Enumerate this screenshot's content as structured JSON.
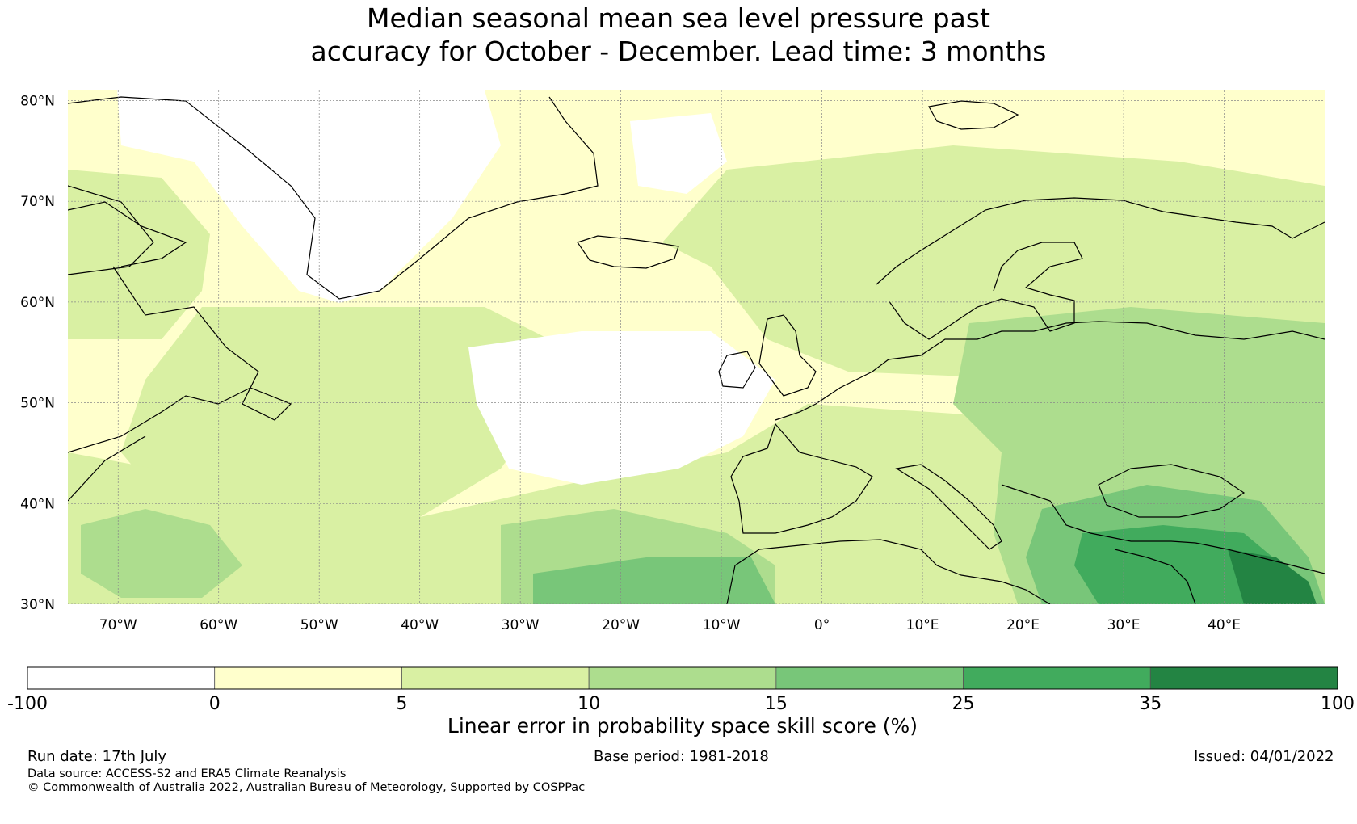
{
  "title": {
    "line1": "Median seasonal mean sea level pressure past",
    "line2": "accuracy for October - December. Lead time: 3 months"
  },
  "map": {
    "lat_labels": [
      "80°N",
      "70°N",
      "60°N",
      "50°N",
      "40°N",
      "30°N"
    ],
    "lon_labels": [
      "70°W",
      "60°W",
      "50°W",
      "40°W",
      "30°W",
      "20°W",
      "10°W",
      "0°",
      "10°E",
      "20°E",
      "30°E",
      "40°E"
    ],
    "lat_range": [
      30,
      81
    ],
    "lon_range": [
      -75,
      50
    ],
    "colors": [
      "#ffffff",
      "#ffffcc",
      "#d9f0a3",
      "#addd8e",
      "#78c679",
      "#41ab5d",
      "#238443"
    ],
    "coastline_color": "#000000"
  },
  "legend": {
    "ticks": [
      "-100",
      "0",
      "5",
      "10",
      "15",
      "25",
      "35",
      "100"
    ],
    "label": "Linear error in probability space skill score (%)"
  },
  "footer": {
    "run_date": "Run date: 17th July",
    "base_period": "Base period: 1981-2018",
    "issued": "Issued: 04/01/2022",
    "data_source": "Data source: ACCESS-S2 and ERA5 Climate Reanalysis",
    "copyright": "© Commonwealth of Australia 2022, Australian Bureau of Meteorology, Supported by COSPPac"
  }
}
